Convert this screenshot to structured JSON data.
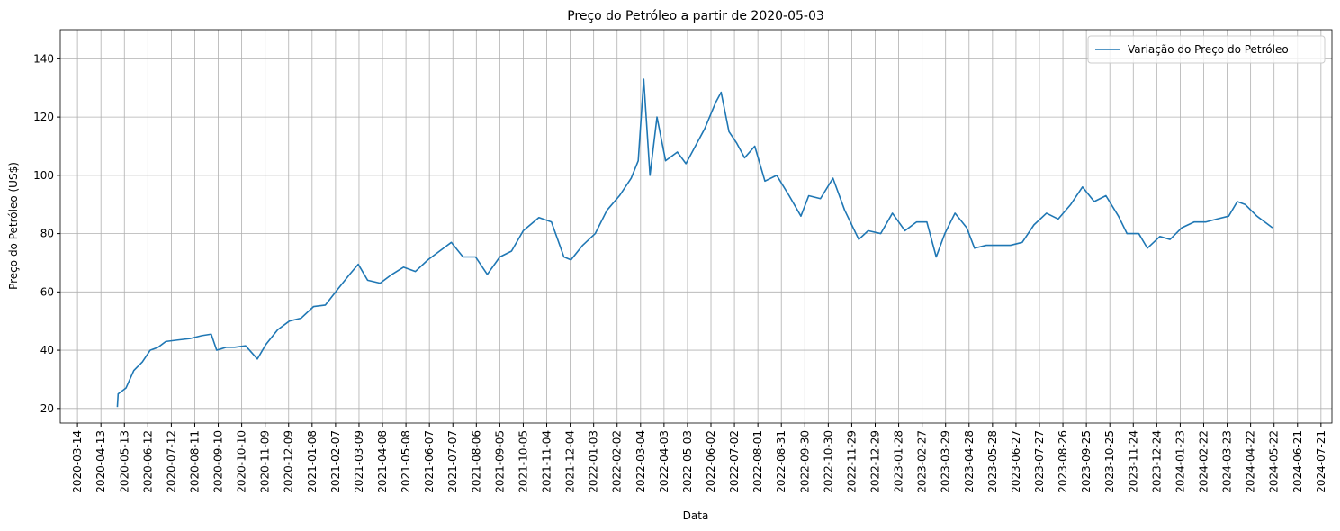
{
  "chart_data": {
    "type": "line",
    "title": "Preço do Petróleo a partir de 2020-05-03",
    "x_label": "Data",
    "y_label": "Preço do Petróleo (US$)",
    "grid": true,
    "legend": "upper right",
    "xlim": [
      "2020-02-21",
      "2024-08-04"
    ],
    "ylim": [
      15,
      150
    ],
    "yticks": [
      20,
      40,
      60,
      80,
      100,
      120,
      140
    ],
    "xticks": [
      "2020-03-14",
      "2020-04-13",
      "2020-05-13",
      "2020-06-12",
      "2020-07-12",
      "2020-08-11",
      "2020-09-10",
      "2020-10-10",
      "2020-11-09",
      "2020-12-09",
      "2021-01-08",
      "2021-02-07",
      "2021-03-09",
      "2021-04-08",
      "2021-05-08",
      "2021-06-07",
      "2021-07-07",
      "2021-08-06",
      "2021-09-05",
      "2021-10-05",
      "2021-11-04",
      "2021-12-04",
      "2022-01-03",
      "2022-02-02",
      "2022-03-04",
      "2022-04-03",
      "2022-05-03",
      "2022-06-02",
      "2022-07-02",
      "2022-08-01",
      "2022-08-31",
      "2022-09-30",
      "2022-10-30",
      "2022-11-29",
      "2022-12-29",
      "2023-01-28",
      "2023-02-27",
      "2023-03-29",
      "2023-04-28",
      "2023-05-28",
      "2023-06-27",
      "2023-07-27",
      "2023-08-26",
      "2023-09-25",
      "2023-10-25",
      "2023-11-24",
      "2023-12-24",
      "2024-01-23",
      "2024-02-22",
      "2024-03-23",
      "2024-04-22",
      "2024-05-22",
      "2024-06-21",
      "2024-07-21"
    ],
    "x": [
      "2020-05-04",
      "2020-05-05",
      "2020-05-15",
      "2020-05-25",
      "2020-06-05",
      "2020-06-15",
      "2020-06-25",
      "2020-07-05",
      "2020-07-20",
      "2020-08-05",
      "2020-08-20",
      "2020-09-01",
      "2020-09-08",
      "2020-09-20",
      "2020-10-01",
      "2020-10-15",
      "2020-10-30",
      "2020-11-10",
      "2020-11-25",
      "2020-12-10",
      "2020-12-25",
      "2021-01-10",
      "2021-01-25",
      "2021-02-10",
      "2021-02-25",
      "2021-03-08",
      "2021-03-20",
      "2021-04-05",
      "2021-04-20",
      "2021-05-05",
      "2021-05-20",
      "2021-06-05",
      "2021-06-20",
      "2021-07-05",
      "2021-07-20",
      "2021-08-05",
      "2021-08-20",
      "2021-09-05",
      "2021-09-20",
      "2021-10-05",
      "2021-10-25",
      "2021-11-10",
      "2021-11-26",
      "2021-12-05",
      "2021-12-20",
      "2022-01-05",
      "2022-01-20",
      "2022-02-05",
      "2022-02-20",
      "2022-03-01",
      "2022-03-08",
      "2022-03-16",
      "2022-03-25",
      "2022-04-05",
      "2022-04-20",
      "2022-05-01",
      "2022-05-15",
      "2022-05-25",
      "2022-06-08",
      "2022-06-15",
      "2022-06-25",
      "2022-07-05",
      "2022-07-15",
      "2022-07-28",
      "2022-08-10",
      "2022-08-25",
      "2022-09-10",
      "2022-09-25",
      "2022-10-05",
      "2022-10-20",
      "2022-11-05",
      "2022-11-20",
      "2022-12-08",
      "2022-12-20",
      "2023-01-05",
      "2023-01-20",
      "2023-02-05",
      "2023-02-20",
      "2023-03-05",
      "2023-03-17",
      "2023-03-28",
      "2023-04-10",
      "2023-04-25",
      "2023-05-05",
      "2023-05-20",
      "2023-06-05",
      "2023-06-20",
      "2023-07-05",
      "2023-07-20",
      "2023-08-05",
      "2023-08-20",
      "2023-09-05",
      "2023-09-20",
      "2023-10-05",
      "2023-10-20",
      "2023-11-05",
      "2023-11-16",
      "2023-12-01",
      "2023-12-12",
      "2023-12-28",
      "2024-01-10",
      "2024-01-25",
      "2024-02-10",
      "2024-02-25",
      "2024-03-10",
      "2024-03-25",
      "2024-04-05",
      "2024-04-15",
      "2024-04-30",
      "2024-05-10",
      "2024-05-20"
    ],
    "series": [
      {
        "name": "Variação do Preço do Petróleo",
        "color": "#1f77b4",
        "values": [
          20.5,
          25,
          27,
          33,
          36,
          40,
          41,
          43,
          43.5,
          44,
          45,
          45.5,
          40,
          41,
          41,
          41.5,
          37,
          42,
          47,
          50,
          51,
          55,
          55.5,
          61,
          66,
          69.5,
          64,
          63,
          66,
          68.5,
          67,
          71,
          74,
          77,
          72,
          72,
          66,
          72,
          74,
          81,
          85.5,
          84,
          72,
          71,
          76,
          80,
          88,
          93,
          99,
          105,
          133,
          100,
          120,
          105,
          108,
          104,
          111,
          116,
          125,
          128.5,
          115,
          111,
          106,
          110,
          98,
          100,
          93,
          86,
          93,
          92,
          99,
          88,
          78,
          81,
          80,
          87,
          81,
          84,
          84,
          72,
          80,
          87,
          82,
          75,
          76,
          76,
          76,
          77,
          83,
          87,
          85,
          90,
          96,
          91,
          93,
          86,
          80,
          80,
          75,
          79,
          78,
          82,
          84,
          84,
          85,
          86,
          91,
          90,
          86,
          84,
          82
        ]
      }
    ]
  }
}
